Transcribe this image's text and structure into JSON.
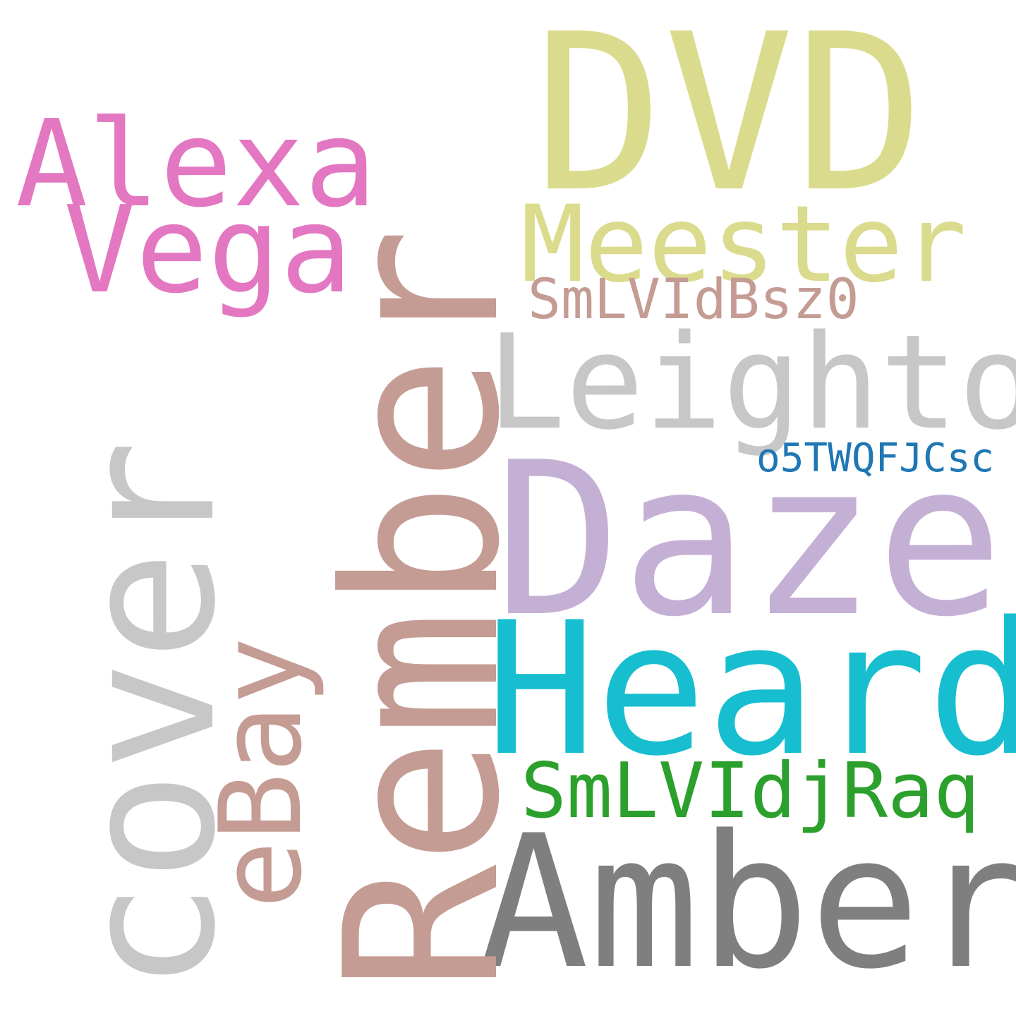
{
  "words": {
    "dvd": {
      "text": "DVD",
      "color": "#dbdb8d"
    },
    "alexa": {
      "text": "Alexa",
      "color": "#e377c2"
    },
    "vega": {
      "text": "Vega",
      "color": "#e377c2"
    },
    "meester": {
      "text": "Meester",
      "color": "#dbdb8d"
    },
    "smlv1": {
      "text": "SmLVIdBsz0",
      "color": "#c49c94"
    },
    "leighton": {
      "text": "Leighton",
      "color": "#c7c7c7"
    },
    "o5tw": {
      "text": "o5TWQFJCsc",
      "color": "#1f77b4"
    },
    "daze": {
      "text": "Daze",
      "color": "#c5b0d5"
    },
    "heard": {
      "text": "Heard",
      "color": "#17becf"
    },
    "smlv2": {
      "text": "SmLVIdjRaq",
      "color": "#2ca02c"
    },
    "amber": {
      "text": "Amber",
      "color": "#7f7f7f"
    },
    "rember": {
      "text": "Rember",
      "color": "#c49c94"
    },
    "cover": {
      "text": "cover",
      "color": "#c7c7c7"
    },
    "ebay": {
      "text": "eBay",
      "color": "#c49c94"
    }
  }
}
